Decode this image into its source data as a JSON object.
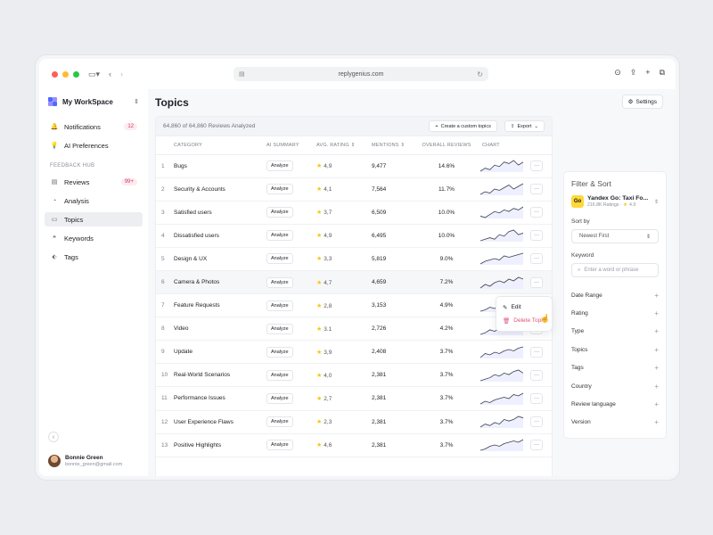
{
  "browser": {
    "url": "replygenius.com"
  },
  "sidebar": {
    "workspace": "My WorkSpace",
    "top_items": [
      {
        "label": "Notifications",
        "badge": "12",
        "icon": "bell-icon"
      },
      {
        "label": "AI Preferences",
        "badge": "",
        "icon": "bulb-icon"
      }
    ],
    "section_label": "FEEDBACK HUB",
    "hub_items": [
      {
        "label": "Reviews",
        "badge": "99+",
        "icon": "reviews-icon"
      },
      {
        "label": "Analysis",
        "badge": "",
        "icon": "chart-icon"
      },
      {
        "label": "Topics",
        "badge": "",
        "icon": "topics-icon"
      },
      {
        "label": "Keywords",
        "badge": "",
        "icon": "quote-icon"
      },
      {
        "label": "Tags",
        "badge": "",
        "icon": "tag-icon"
      }
    ],
    "active": "Topics",
    "user": {
      "name": "Bonnie Green",
      "email": "bonnie_green@gmail.com"
    }
  },
  "main": {
    "title": "Topics",
    "settings_label": "Settings",
    "count_text": "64,860 of 64,860 Reviews Analyzed",
    "create_label": "Create a custom topics",
    "export_label": "Export",
    "columns": [
      "CATEGORY",
      "AI SUMMARY",
      "AVG. RATING",
      "MENTIONS",
      "OVERALL REVIEWS",
      "CHART"
    ],
    "analyze_label": "Analyze",
    "rows": [
      {
        "n": "1",
        "category": "Bugs",
        "rating": "4,9",
        "mentions": "9,477",
        "overall": "14.6%",
        "spark": [
          3,
          5,
          4,
          7,
          6,
          9,
          8,
          10,
          7,
          9
        ]
      },
      {
        "n": "2",
        "category": "Security & Accounts",
        "rating": "4,1",
        "mentions": "7,564",
        "overall": "11.7%",
        "spark": [
          2,
          4,
          3,
          6,
          5,
          7,
          9,
          6,
          8,
          10
        ]
      },
      {
        "n": "3",
        "category": "Satisfied users",
        "rating": "3,7",
        "mentions": "6,509",
        "overall": "10.0%",
        "spark": [
          4,
          3,
          5,
          7,
          6,
          8,
          7,
          9,
          8,
          10
        ]
      },
      {
        "n": "4",
        "category": "Dissatisfied users",
        "rating": "4,9",
        "mentions": "6,495",
        "overall": "10.0%",
        "spark": [
          3,
          4,
          5,
          4,
          7,
          6,
          9,
          10,
          7,
          8
        ]
      },
      {
        "n": "5",
        "category": "Design & UX",
        "rating": "3,3",
        "mentions": "5,819",
        "overall": "9.0%",
        "spark": [
          2,
          4,
          5,
          6,
          5,
          8,
          7,
          8,
          9,
          10
        ]
      },
      {
        "n": "6",
        "category": "Camera & Photos",
        "rating": "4,7",
        "mentions": "4,659",
        "overall": "7.2%",
        "spark": [
          3,
          5,
          4,
          6,
          7,
          6,
          8,
          7,
          9,
          8
        ]
      },
      {
        "n": "7",
        "category": "Feature Requests",
        "rating": "2,8",
        "mentions": "3,153",
        "overall": "4.9%",
        "spark": [
          2,
          3,
          5,
          4,
          6,
          7,
          6,
          8,
          9,
          10
        ]
      },
      {
        "n": "8",
        "category": "Video",
        "rating": "3.1",
        "mentions": "2,726",
        "overall": "4.2%",
        "spark": [
          3,
          4,
          6,
          5,
          7,
          6,
          9,
          8,
          10,
          9
        ]
      },
      {
        "n": "9",
        "category": "Update",
        "rating": "3,9",
        "mentions": "2,408",
        "overall": "3.7%",
        "spark": [
          2,
          5,
          4,
          6,
          5,
          7,
          8,
          7,
          9,
          10
        ]
      },
      {
        "n": "10",
        "category": "Real-World Scenarios",
        "rating": "4,0",
        "mentions": "2,381",
        "overall": "3.7%",
        "spark": [
          3,
          4,
          5,
          7,
          6,
          8,
          7,
          9,
          10,
          8
        ]
      },
      {
        "n": "11",
        "category": "Performance Issues",
        "rating": "2,7",
        "mentions": "2,381",
        "overall": "3.7%",
        "spark": [
          2,
          4,
          3,
          5,
          6,
          7,
          6,
          9,
          8,
          10
        ]
      },
      {
        "n": "12",
        "category": "User Experience Flaws",
        "rating": "2,3",
        "mentions": "2,381",
        "overall": "3.7%",
        "spark": [
          3,
          5,
          4,
          6,
          5,
          8,
          7,
          8,
          10,
          9
        ]
      },
      {
        "n": "13",
        "category": "Positive Highlights",
        "rating": "4,6",
        "mentions": "2,381",
        "overall": "3.7%",
        "spark": [
          2,
          3,
          5,
          6,
          5,
          7,
          8,
          9,
          8,
          10
        ]
      }
    ],
    "context_menu": {
      "edit": "Edit",
      "delete": "Delete Topic"
    }
  },
  "filter": {
    "title": "Filter & Sort",
    "app": {
      "name": "Yandex Go: Taxi Fo...",
      "ratings": "216.8K Ratings",
      "score": "4.9",
      "logo": "Go"
    },
    "sort_label": "Sort by",
    "sort_value": "Newest First",
    "keyword_label": "Keyword",
    "keyword_placeholder": "Enter a word or phrase",
    "sections": [
      "Date Range",
      "Rating",
      "Type",
      "Topics",
      "Tags",
      "Country",
      "Review language",
      "Version"
    ]
  },
  "colors": {
    "accent": "#d23c64",
    "star": "#f5c518",
    "light_red": "#ff5f57",
    "light_yellow": "#febc2e",
    "light_green": "#28c840"
  }
}
